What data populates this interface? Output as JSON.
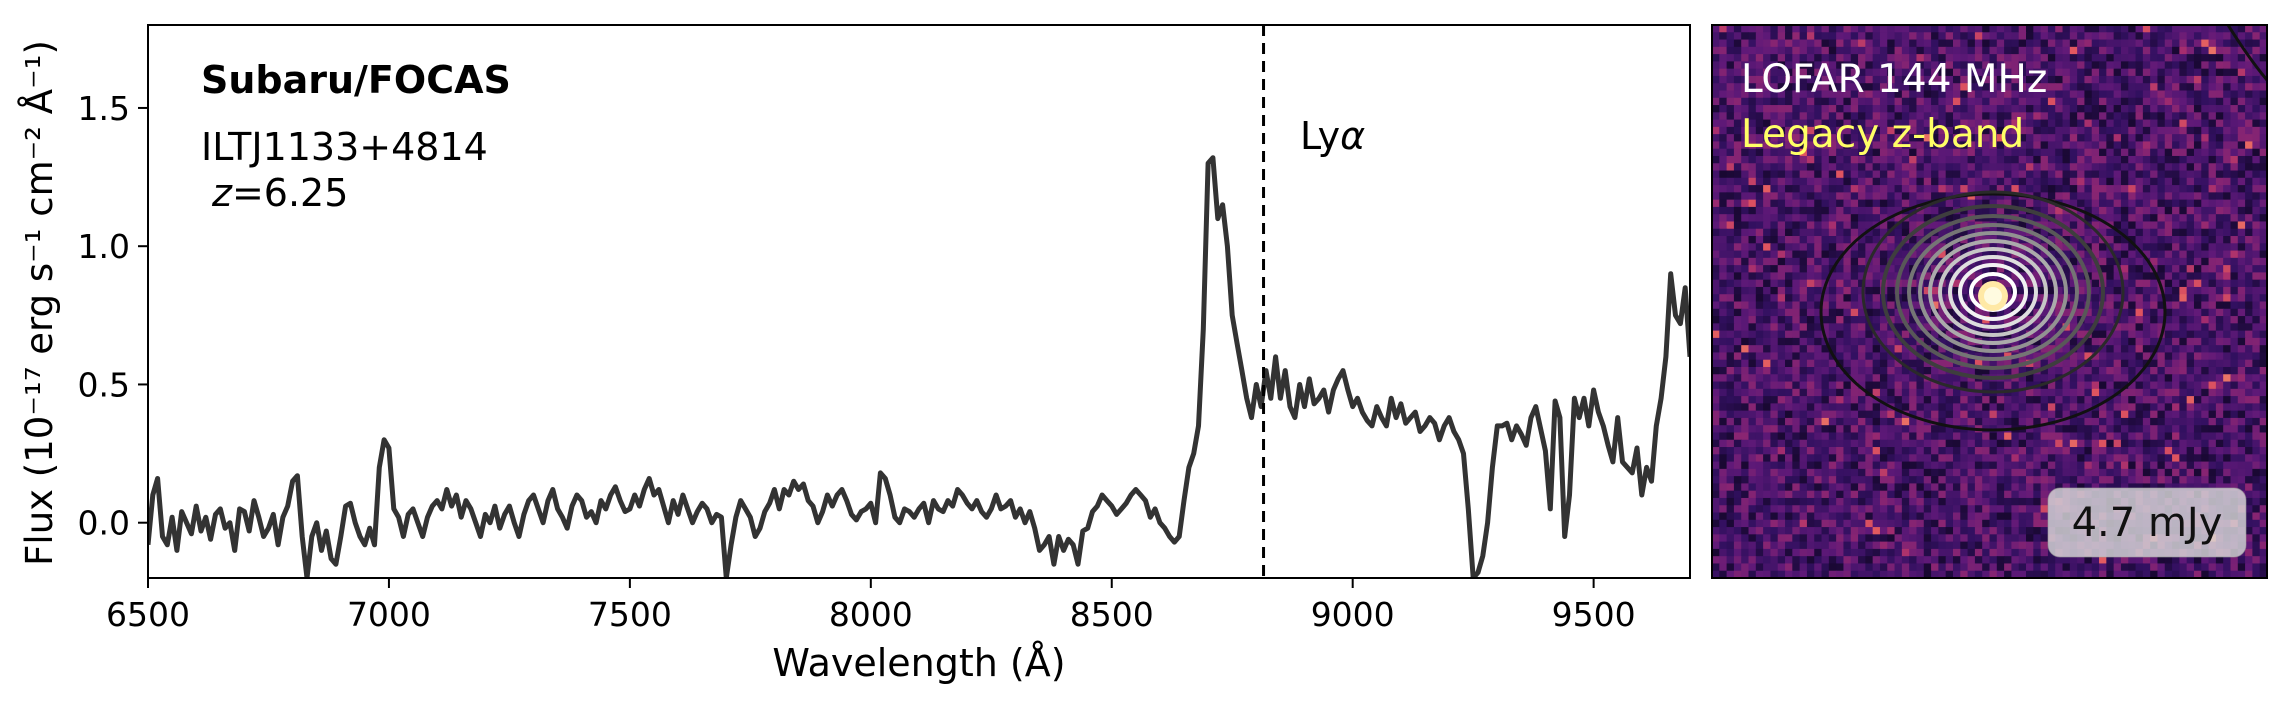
{
  "chart_data": [
    {
      "type": "line",
      "title": "",
      "xlabel": "Wavelength (Å)",
      "ylabel": "Flux (10⁻¹⁷ erg s⁻¹ cm⁻² Å⁻¹)",
      "xlim": [
        6500,
        9700
      ],
      "ylim": [
        -0.2,
        1.8
      ],
      "xticks": [
        6500,
        7000,
        7500,
        8000,
        8500,
        9000,
        9500
      ],
      "yticks": [
        0.0,
        0.5,
        1.0,
        1.5
      ],
      "ytick_labels": [
        "0.0",
        "0.5",
        "1.0",
        "1.5"
      ],
      "grid": false,
      "annotations": {
        "instrument": "Subaru/FOCAS",
        "source": "ILTJ1133+4814",
        "redshift_prefix": "z",
        "redshift_value": "=6.25",
        "line_label": "Ly",
        "line_label_symbol": "α"
      },
      "vline": {
        "x": 8815,
        "style": "dashed",
        "label": "Lyα"
      },
      "series": [
        {
          "color": "#333333",
          "x": [
            6500,
            6510,
            6520,
            6530,
            6540,
            6550,
            6560,
            6570,
            6580,
            6590,
            6600,
            6610,
            6620,
            6630,
            6640,
            6650,
            6660,
            6670,
            6680,
            6690,
            6700,
            6710,
            6720,
            6730,
            6740,
            6750,
            6760,
            6770,
            6780,
            6790,
            6800,
            6810,
            6820,
            6830,
            6840,
            6850,
            6860,
            6870,
            6880,
            6890,
            6900,
            6910,
            6920,
            6930,
            6940,
            6950,
            6960,
            6970,
            6980,
            6990,
            7000,
            7010,
            7020,
            7030,
            7040,
            7050,
            7060,
            7070,
            7080,
            7090,
            7100,
            7110,
            7120,
            7130,
            7140,
            7150,
            7160,
            7170,
            7180,
            7190,
            7200,
            7210,
            7220,
            7230,
            7240,
            7250,
            7260,
            7270,
            7280,
            7290,
            7300,
            7310,
            7320,
            7330,
            7340,
            7350,
            7360,
            7370,
            7380,
            7390,
            7400,
            7410,
            7420,
            7430,
            7440,
            7450,
            7460,
            7470,
            7480,
            7490,
            7500,
            7510,
            7520,
            7530,
            7540,
            7550,
            7560,
            7570,
            7580,
            7590,
            7600,
            7610,
            7620,
            7630,
            7640,
            7650,
            7660,
            7670,
            7680,
            7690,
            7700,
            7710,
            7720,
            7730,
            7740,
            7750,
            7760,
            7770,
            7780,
            7790,
            7800,
            7810,
            7820,
            7830,
            7840,
            7850,
            7860,
            7870,
            7880,
            7890,
            7900,
            7910,
            7920,
            7930,
            7940,
            7950,
            7960,
            7970,
            7980,
            7990,
            8000,
            8010,
            8020,
            8030,
            8040,
            8050,
            8060,
            8070,
            8080,
            8090,
            8100,
            8110,
            8120,
            8130,
            8140,
            8150,
            8160,
            8170,
            8180,
            8190,
            8200,
            8210,
            8220,
            8230,
            8240,
            8250,
            8260,
            8270,
            8280,
            8290,
            8300,
            8310,
            8320,
            8330,
            8340,
            8350,
            8360,
            8370,
            8380,
            8390,
            8400,
            8410,
            8420,
            8430,
            8440,
            8450,
            8460,
            8470,
            8480,
            8490,
            8500,
            8510,
            8520,
            8530,
            8540,
            8550,
            8560,
            8570,
            8580,
            8590,
            8600,
            8610,
            8620,
            8630,
            8640,
            8650,
            8660,
            8670,
            8680,
            8690,
            8700,
            8710,
            8720,
            8730,
            8740,
            8750,
            8760,
            8770,
            8780,
            8790,
            8800,
            8810,
            8820,
            8830,
            8840,
            8850,
            8860,
            8870,
            8880,
            8890,
            8900,
            8910,
            8920,
            8930,
            8940,
            8950,
            8960,
            8970,
            8980,
            8990,
            9000,
            9010,
            9020,
            9030,
            9040,
            9050,
            9060,
            9070,
            9080,
            9090,
            9100,
            9110,
            9120,
            9130,
            9140,
            9150,
            9160,
            9170,
            9180,
            9190,
            9200,
            9210,
            9220,
            9230,
            9240,
            9250,
            9260,
            9270,
            9280,
            9290,
            9300,
            9310,
            9320,
            9330,
            9340,
            9350,
            9360,
            9370,
            9380,
            9390,
            9400,
            9410,
            9420,
            9430,
            9440,
            9450,
            9460,
            9470,
            9480,
            9490,
            9500,
            9510,
            9520,
            9530,
            9540,
            9550,
            9560,
            9570,
            9580,
            9590,
            9600,
            9610,
            9620,
            9630,
            9640,
            9650,
            9660,
            9670,
            9680,
            9690,
            9700
          ],
          "y": [
            -0.08,
            0.1,
            0.16,
            -0.05,
            -0.08,
            0.02,
            -0.1,
            0.04,
            0.0,
            -0.04,
            0.06,
            -0.03,
            0.02,
            -0.06,
            0.03,
            0.05,
            -0.02,
            0.0,
            -0.1,
            0.05,
            0.04,
            -0.03,
            0.08,
            0.02,
            -0.05,
            -0.02,
            0.03,
            -0.08,
            0.02,
            0.06,
            0.15,
            0.17,
            -0.05,
            -0.2,
            -0.05,
            0.0,
            -0.1,
            -0.03,
            -0.13,
            -0.15,
            -0.05,
            0.06,
            0.07,
            0.0,
            -0.05,
            -0.08,
            -0.02,
            -0.08,
            0.2,
            0.3,
            0.27,
            0.05,
            0.02,
            -0.05,
            0.03,
            0.05,
            0.0,
            -0.05,
            0.02,
            0.06,
            0.08,
            0.05,
            0.12,
            0.06,
            0.1,
            0.02,
            0.08,
            0.05,
            0.0,
            -0.05,
            0.03,
            0.0,
            0.06,
            -0.02,
            0.03,
            0.06,
            0.0,
            -0.05,
            0.03,
            0.08,
            0.1,
            0.05,
            0.0,
            0.08,
            0.12,
            0.05,
            0.02,
            -0.02,
            0.06,
            0.1,
            0.08,
            0.02,
            0.04,
            0.0,
            0.08,
            0.05,
            0.1,
            0.13,
            0.08,
            0.04,
            0.05,
            0.1,
            0.06,
            0.12,
            0.16,
            0.1,
            0.12,
            0.06,
            0.0,
            0.08,
            0.03,
            0.1,
            0.05,
            0.0,
            0.04,
            0.07,
            0.05,
            0.0,
            0.03,
            0.02,
            -0.2,
            -0.08,
            0.02,
            0.08,
            0.05,
            0.02,
            -0.05,
            -0.02,
            0.04,
            0.07,
            0.12,
            0.05,
            0.12,
            0.1,
            0.15,
            0.12,
            0.14,
            0.08,
            0.06,
            0.0,
            0.04,
            0.1,
            0.06,
            0.1,
            0.12,
            0.08,
            0.03,
            0.01,
            0.04,
            0.05,
            0.07,
            0.0,
            0.18,
            0.16,
            0.1,
            0.02,
            0.0,
            0.05,
            0.04,
            0.02,
            0.05,
            0.07,
            0.0,
            0.08,
            0.05,
            0.04,
            0.08,
            0.06,
            0.12,
            0.1,
            0.07,
            0.05,
            0.08,
            0.04,
            0.02,
            0.05,
            0.1,
            0.05,
            0.06,
            0.08,
            0.02,
            0.05,
            0.0,
            0.04,
            -0.02,
            -0.1,
            -0.08,
            -0.05,
            -0.15,
            -0.05,
            -0.1,
            -0.06,
            -0.08,
            -0.15,
            -0.03,
            -0.02,
            0.04,
            0.06,
            0.1,
            0.08,
            0.06,
            0.03,
            0.05,
            0.07,
            0.1,
            0.12,
            0.1,
            0.08,
            0.02,
            0.05,
            0.0,
            -0.02,
            -0.05,
            -0.07,
            -0.05,
            0.08,
            0.2,
            0.25,
            0.35,
            0.7,
            1.3,
            1.32,
            1.1,
            1.15,
            1.0,
            0.75,
            0.65,
            0.55,
            0.45,
            0.38,
            0.5,
            0.42,
            0.55,
            0.45,
            0.6,
            0.45,
            0.55,
            0.42,
            0.38,
            0.5,
            0.42,
            0.52,
            0.43,
            0.45,
            0.48,
            0.4,
            0.48,
            0.52,
            0.55,
            0.48,
            0.42,
            0.45,
            0.4,
            0.37,
            0.35,
            0.42,
            0.38,
            0.35,
            0.45,
            0.38,
            0.43,
            0.36,
            0.38,
            0.4,
            0.33,
            0.35,
            0.38,
            0.36,
            0.3,
            0.35,
            0.38,
            0.33,
            0.3,
            0.25,
            0.05,
            -0.2,
            -0.18,
            -0.12,
            0.0,
            0.2,
            0.35,
            0.35,
            0.36,
            0.3,
            0.35,
            0.32,
            0.28,
            0.38,
            0.42,
            0.34,
            0.26,
            0.05,
            0.44,
            0.38,
            -0.05,
            0.1,
            0.45,
            0.38,
            0.45,
            0.35,
            0.48,
            0.4,
            0.35,
            0.28,
            0.22,
            0.38,
            0.22,
            0.2,
            0.18,
            0.27,
            0.1,
            0.2,
            0.15,
            0.35,
            0.45,
            0.6,
            0.9,
            0.75,
            0.72,
            0.85,
            0.6
          ]
        }
      ]
    },
    {
      "type": "heatmap",
      "legend": {
        "radio": "LOFAR 144 MHz",
        "optical": "Legacy z-band",
        "radio_color": "#ffffff",
        "optical_color": "#ffff66"
      },
      "flux_label": "4.7 mJy",
      "colormap": "magma"
    }
  ]
}
